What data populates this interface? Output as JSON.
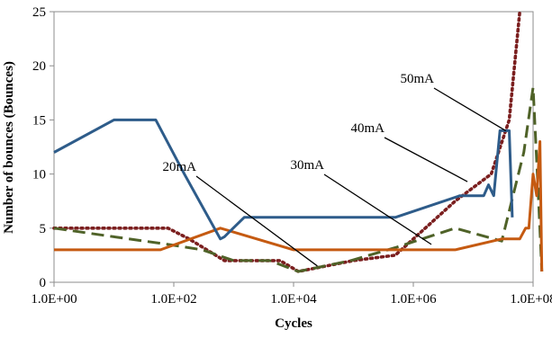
{
  "chart_data": {
    "type": "line",
    "title": "",
    "xlabel": "Cycles",
    "ylabel": "Number of bounces (Bounces)",
    "x_scale": "log",
    "xlim": [
      1,
      100000000
    ],
    "ylim": [
      0,
      25
    ],
    "x_ticks": [
      {
        "value": 1,
        "label": "1.0E+00"
      },
      {
        "value": 100,
        "label": "1.0E+02"
      },
      {
        "value": 10000,
        "label": "1.0E+04"
      },
      {
        "value": 1000000,
        "label": "1.0E+06"
      },
      {
        "value": 100000000,
        "label": "1.0E+08"
      }
    ],
    "y_ticks": [
      0,
      5,
      10,
      15,
      20,
      25
    ],
    "grid": false,
    "legend": "none",
    "series": [
      {
        "name": "50mA",
        "color": "#2e5c8a",
        "style": "solid",
        "points": [
          [
            1,
            12
          ],
          [
            10,
            15
          ],
          [
            50,
            15
          ],
          [
            150,
            10
          ],
          [
            600,
            4
          ],
          [
            700,
            4.2
          ],
          [
            1500,
            6
          ],
          [
            500000,
            6
          ],
          [
            6000000,
            8
          ],
          [
            15000000,
            8
          ],
          [
            18000000,
            9
          ],
          [
            22000000,
            8
          ],
          [
            28000000,
            14
          ],
          [
            40000000,
            14
          ],
          [
            45000000,
            6
          ]
        ]
      },
      {
        "name": "40mA",
        "color": "#4f6228",
        "style": "dashed",
        "points": [
          [
            1,
            5
          ],
          [
            10,
            4.2
          ],
          [
            80,
            3.5
          ],
          [
            300,
            3
          ],
          [
            1000,
            2
          ],
          [
            4000,
            2
          ],
          [
            12000,
            1
          ],
          [
            90000,
            2
          ],
          [
            500000,
            3.2
          ],
          [
            5000000,
            5
          ],
          [
            30000000,
            3.8
          ],
          [
            70000000,
            12
          ],
          [
            100000000,
            18
          ],
          [
            120000000,
            9
          ],
          [
            140000000,
            1
          ]
        ]
      },
      {
        "name": "30mA",
        "color": "#c55a11",
        "style": "solid",
        "points": [
          [
            1,
            3
          ],
          [
            60,
            3
          ],
          [
            600,
            5
          ],
          [
            10000,
            3
          ],
          [
            5000000,
            3
          ],
          [
            30000000,
            4
          ],
          [
            60000000,
            4
          ],
          [
            75000000,
            5
          ],
          [
            85000000,
            5
          ],
          [
            100000000,
            10
          ],
          [
            115000000,
            8
          ],
          [
            130000000,
            13
          ],
          [
            140000000,
            1
          ]
        ]
      },
      {
        "name": "20mA",
        "color": "#7b1f1f",
        "style": "dotted",
        "points": [
          [
            1,
            5
          ],
          [
            80,
            5
          ],
          [
            180,
            4
          ],
          [
            700,
            2
          ],
          [
            3000,
            2
          ],
          [
            6000,
            2
          ],
          [
            12000,
            1
          ],
          [
            100000,
            2
          ],
          [
            500000,
            2.5
          ],
          [
            5000000,
            7.5
          ],
          [
            20000000,
            10
          ],
          [
            40000000,
            15
          ],
          [
            60000000,
            25
          ]
        ]
      }
    ],
    "annotations": [
      {
        "text": "50mA",
        "series": "50mA",
        "points_to": [
          35000000,
          14
        ]
      },
      {
        "text": "40mA",
        "series": "40mA",
        "points_to": [
          8000000,
          9.3
        ]
      },
      {
        "text": "30mA",
        "series": "30mA",
        "points_to": [
          2000000,
          3.5
        ]
      },
      {
        "text": "20mA",
        "series": "20mA",
        "points_to": [
          25000,
          1.5
        ]
      }
    ]
  }
}
